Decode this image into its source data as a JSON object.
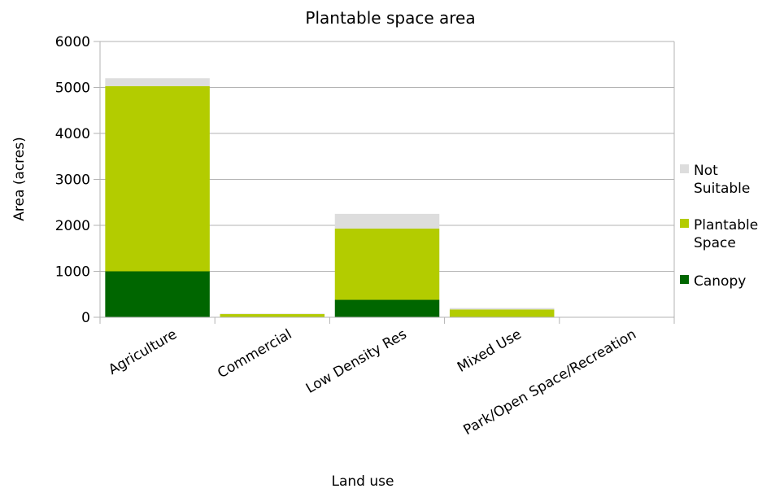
{
  "chart_data": {
    "type": "bar",
    "stacked": true,
    "title": "Plantable space area",
    "xlabel": "Land use",
    "ylabel": "Area (acres)",
    "ylim": [
      0,
      6000
    ],
    "yticks": [
      0,
      1000,
      2000,
      3000,
      4000,
      5000,
      6000
    ],
    "grid": true,
    "legend_position": "right",
    "categories": [
      "Agriculture",
      "Commercial",
      "Low Density Res",
      "Mixed Use",
      "Park/Open Space/Recreation"
    ],
    "series": [
      {
        "name": "Canopy",
        "color": "#006600",
        "values": [
          1000,
          0,
          380,
          0,
          0
        ]
      },
      {
        "name": "Plantable Space",
        "color": "#b3cc00",
        "values": [
          4030,
          70,
          1550,
          170,
          0
        ]
      },
      {
        "name": "Not Suitable",
        "color": "#dddddd",
        "values": [
          170,
          10,
          320,
          30,
          0
        ]
      }
    ],
    "legend_order": [
      "Not Suitable",
      "Plantable Space",
      "Canopy"
    ],
    "legend_lines": {
      "Not Suitable": [
        "Not",
        "Suitable"
      ],
      "Plantable Space": [
        "Plantable",
        "Space"
      ],
      "Canopy": [
        "Canopy"
      ]
    }
  }
}
